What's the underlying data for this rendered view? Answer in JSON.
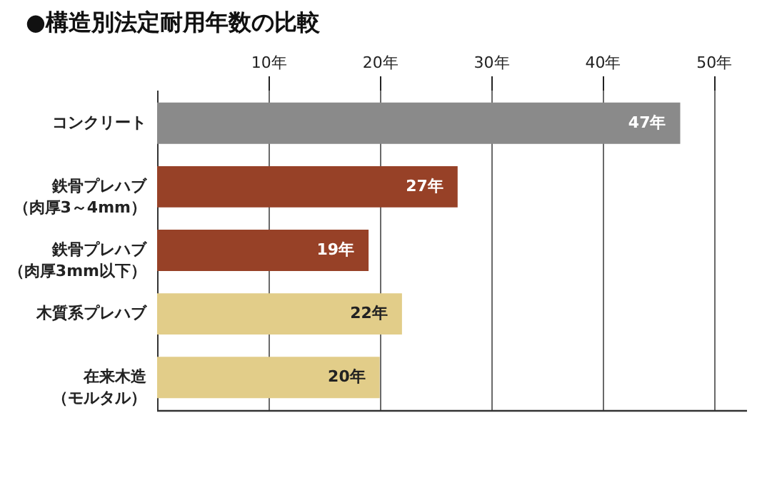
{
  "chart_data": {
    "type": "bar",
    "orientation": "horizontal",
    "title": "●構造別法定耐用年数の比較",
    "categories": [
      "コンクリート",
      "鉄骨プレハブ（肉厚3～4mm）",
      "鉄骨プレハブ（肉厚3mm以下）",
      "木質系プレハブ",
      "在来木造（モルタル）"
    ],
    "values": [
      47,
      27,
      19,
      22,
      20
    ],
    "colors": [
      "#8a8a8a",
      "#974127",
      "#974127",
      "#e2cd89",
      "#e2cd89"
    ],
    "value_labels": [
      "47年",
      "27年",
      "19年",
      "22年",
      "20年"
    ],
    "xlim": [
      0,
      53
    ],
    "xticks": [
      {
        "value": 10,
        "label": "10年"
      },
      {
        "value": 20,
        "label": "20年"
      },
      {
        "value": 30,
        "label": "30年"
      },
      {
        "value": 40,
        "label": "40年"
      },
      {
        "value": 50,
        "label": "50年"
      }
    ],
    "grid": "x"
  }
}
